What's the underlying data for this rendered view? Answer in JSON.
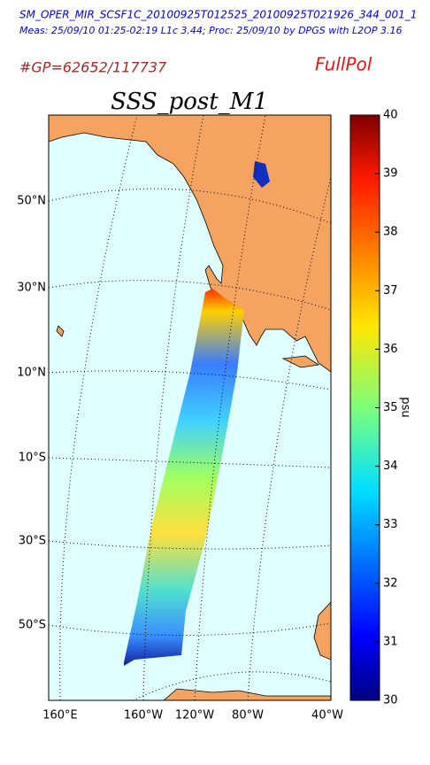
{
  "header": {
    "filename": "SM_OPER_MIR_SCSF1C_20100925T012525_20100925T021926_344_001_1",
    "meas": "Meas: 25/09/10 01:25-02:19 L1c 3.44; Proc: 25/09/10 by DPGS with L2OP 3.16",
    "gp": "#GP=62652/117737",
    "mode": "FullPol"
  },
  "map": {
    "title": "SSS_post_M1",
    "lat_labels": [
      "50°N",
      "30°N",
      "10°N",
      "10°S",
      "30°S",
      "50°S"
    ],
    "lon_labels": [
      "160°E",
      "160°W",
      "120°W",
      "80°W",
      "40°W"
    ]
  },
  "colorbar": {
    "label": "psu",
    "range": [
      30,
      40
    ],
    "ticks": [
      30,
      31,
      32,
      33,
      34,
      35,
      36,
      37,
      38,
      39,
      40
    ]
  }
}
